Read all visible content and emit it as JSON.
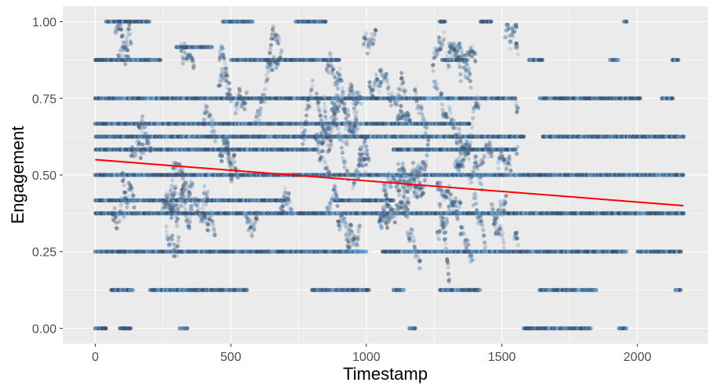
{
  "chart_data": {
    "type": "scatter",
    "title": "",
    "xlabel": "Timestamp",
    "ylabel": "Engagement",
    "xlim": [
      -120,
      2260
    ],
    "ylim": [
      -0.05,
      1.05
    ],
    "x_ticks": [
      0,
      500,
      1000,
      1500,
      2000
    ],
    "x_tick_labels": [
      "0",
      "500",
      "1000",
      "1500",
      "2000"
    ],
    "y_ticks": [
      0.0,
      0.25,
      0.5,
      0.75,
      1.0
    ],
    "y_tick_labels": [
      "0.00",
      "0.25",
      "0.50",
      "0.75",
      "1.00"
    ],
    "grid": true,
    "legend": "none",
    "colors": {
      "panel_background": "#ebebeb",
      "grid_major": "#ffffff",
      "point_dark": "#3b5472",
      "point_mid": "#4f7ea8",
      "point_light": "#6aaee0",
      "point_faint": "#a8b4c2",
      "trend_line": "#ff0000"
    },
    "trend_line": {
      "x": [
        0,
        2170
      ],
      "y": [
        0.55,
        0.4
      ]
    },
    "horizontal_bands": [
      {
        "y": 0.0,
        "x_ranges": [
          [
            0,
            40
          ],
          [
            90,
            130
          ],
          [
            310,
            340
          ],
          [
            1160,
            1180
          ],
          [
            1580,
            1830
          ],
          [
            1930,
            1960
          ]
        ]
      },
      {
        "y": 0.125,
        "x_ranges": [
          [
            60,
            140
          ],
          [
            200,
            560
          ],
          [
            800,
            1010
          ],
          [
            1100,
            1140
          ],
          [
            1270,
            1420
          ],
          [
            1640,
            1850
          ],
          [
            2140,
            2160
          ]
        ]
      },
      {
        "y": 0.25,
        "x_ranges": [
          [
            0,
            1000
          ],
          [
            1060,
            1960
          ],
          [
            2000,
            2160
          ]
        ]
      },
      {
        "y": 0.375,
        "x_ranges": [
          [
            0,
            2170
          ]
        ]
      },
      {
        "y": 0.417,
        "x_ranges": [
          [
            0,
            700
          ],
          [
            880,
            1100
          ]
        ]
      },
      {
        "y": 0.5,
        "x_ranges": [
          [
            0,
            2170
          ]
        ]
      },
      {
        "y": 0.583,
        "x_ranges": [
          [
            0,
            820
          ],
          [
            1100,
            1550
          ]
        ]
      },
      {
        "y": 0.625,
        "x_ranges": [
          [
            0,
            1580
          ],
          [
            1650,
            2170
          ]
        ]
      },
      {
        "y": 0.667,
        "x_ranges": [
          [
            0,
            1380
          ]
        ]
      },
      {
        "y": 0.75,
        "x_ranges": [
          [
            0,
            1550
          ],
          [
            1640,
            2010
          ],
          [
            2090,
            2130
          ]
        ]
      },
      {
        "y": 0.875,
        "x_ranges": [
          [
            0,
            240
          ],
          [
            500,
            900
          ],
          [
            1280,
            1370
          ],
          [
            1600,
            1650
          ],
          [
            1900,
            1930
          ],
          [
            2130,
            2150
          ]
        ]
      },
      {
        "y": 0.917,
        "x_ranges": [
          [
            300,
            430
          ]
        ]
      },
      {
        "y": 1.0,
        "x_ranges": [
          [
            40,
            200
          ],
          [
            470,
            580
          ],
          [
            740,
            850
          ],
          [
            1270,
            1290
          ],
          [
            1420,
            1460
          ],
          [
            1950,
            1960
          ]
        ]
      }
    ],
    "scatter_cloud": {
      "x_range": [
        0,
        1560
      ],
      "y_range": [
        0.0,
        1.0
      ],
      "approx_points": 2600
    }
  }
}
